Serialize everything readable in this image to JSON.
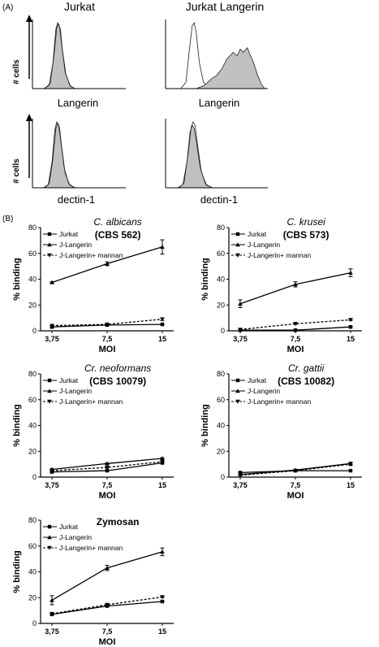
{
  "figure": {
    "panel_a_label": "(A)",
    "panel_b_label": "(B)"
  },
  "chart_data": [
    {
      "type": "area",
      "kind": "flow-histogram",
      "title": "Jurkat",
      "xlabel": "Langerin",
      "ylabel": "# cells",
      "series": [
        {
          "fill": "#c0c0c0",
          "profile": [
            [
              0,
              0
            ],
            [
              0.12,
              0
            ],
            [
              0.18,
              0.05
            ],
            [
              0.22,
              0.4
            ],
            [
              0.25,
              0.9
            ],
            [
              0.27,
              1.0
            ],
            [
              0.29,
              0.95
            ],
            [
              0.31,
              0.7
            ],
            [
              0.35,
              0.25
            ],
            [
              0.4,
              0.05
            ],
            [
              0.45,
              0
            ],
            [
              1,
              0
            ]
          ]
        },
        {
          "fill": "none",
          "profile": [
            [
              0,
              0
            ],
            [
              0.13,
              0
            ],
            [
              0.19,
              0.08
            ],
            [
              0.23,
              0.5
            ],
            [
              0.26,
              0.92
            ],
            [
              0.28,
              0.98
            ],
            [
              0.3,
              0.9
            ],
            [
              0.32,
              0.6
            ],
            [
              0.36,
              0.2
            ],
            [
              0.41,
              0.03
            ],
            [
              0.46,
              0
            ],
            [
              1,
              0
            ]
          ]
        }
      ]
    },
    {
      "type": "area",
      "kind": "flow-histogram",
      "title": "Jurkat Langerin",
      "xlabel": "Langerin",
      "ylabel": "",
      "series": [
        {
          "fill": "none",
          "profile": [
            [
              0,
              0
            ],
            [
              0.15,
              0
            ],
            [
              0.2,
              0.1
            ],
            [
              0.23,
              0.55
            ],
            [
              0.26,
              0.95
            ],
            [
              0.28,
              1.0
            ],
            [
              0.3,
              0.85
            ],
            [
              0.33,
              0.4
            ],
            [
              0.37,
              0.1
            ],
            [
              0.42,
              0
            ],
            [
              1,
              0
            ]
          ]
        },
        {
          "fill": "#c0c0c0",
          "profile": [
            [
              0,
              0
            ],
            [
              0.3,
              0
            ],
            [
              0.38,
              0.05
            ],
            [
              0.45,
              0.15
            ],
            [
              0.5,
              0.2
            ],
            [
              0.55,
              0.3
            ],
            [
              0.6,
              0.45
            ],
            [
              0.63,
              0.5
            ],
            [
              0.66,
              0.55
            ],
            [
              0.7,
              0.5
            ],
            [
              0.73,
              0.6
            ],
            [
              0.76,
              0.55
            ],
            [
              0.8,
              0.62
            ],
            [
              0.83,
              0.5
            ],
            [
              0.86,
              0.4
            ],
            [
              0.9,
              0.2
            ],
            [
              0.94,
              0.06
            ],
            [
              0.97,
              0
            ],
            [
              1,
              0
            ]
          ]
        }
      ]
    },
    {
      "type": "area",
      "kind": "flow-histogram",
      "title": "",
      "xlabel": "dectin-1",
      "ylabel": "# cells",
      "series": [
        {
          "fill": "#c0c0c0",
          "profile": [
            [
              0,
              0
            ],
            [
              0.12,
              0
            ],
            [
              0.17,
              0.05
            ],
            [
              0.21,
              0.4
            ],
            [
              0.24,
              0.88
            ],
            [
              0.26,
              1.0
            ],
            [
              0.28,
              0.96
            ],
            [
              0.3,
              0.75
            ],
            [
              0.34,
              0.3
            ],
            [
              0.39,
              0.06
            ],
            [
              0.45,
              0
            ],
            [
              1,
              0
            ]
          ]
        },
        {
          "fill": "none",
          "profile": [
            [
              0,
              0
            ],
            [
              0.13,
              0
            ],
            [
              0.18,
              0.06
            ],
            [
              0.22,
              0.45
            ],
            [
              0.25,
              0.9
            ],
            [
              0.27,
              0.97
            ],
            [
              0.29,
              0.92
            ],
            [
              0.31,
              0.65
            ],
            [
              0.35,
              0.22
            ],
            [
              0.4,
              0.04
            ],
            [
              0.46,
              0
            ],
            [
              1,
              0
            ]
          ]
        }
      ]
    },
    {
      "type": "area",
      "kind": "flow-histogram",
      "title": "",
      "xlabel": "dectin-1",
      "ylabel": "",
      "series": [
        {
          "fill": "#c0c0c0",
          "profile": [
            [
              0,
              0
            ],
            [
              0.12,
              0
            ],
            [
              0.17,
              0.05
            ],
            [
              0.21,
              0.4
            ],
            [
              0.24,
              0.85
            ],
            [
              0.26,
              0.95
            ],
            [
              0.28,
              0.9
            ],
            [
              0.3,
              0.72
            ],
            [
              0.34,
              0.3
            ],
            [
              0.39,
              0.06
            ],
            [
              0.45,
              0
            ],
            [
              1,
              0
            ]
          ]
        },
        {
          "fill": "none",
          "profile": [
            [
              0,
              0
            ],
            [
              0.13,
              0
            ],
            [
              0.18,
              0.07
            ],
            [
              0.22,
              0.5
            ],
            [
              0.25,
              0.92
            ],
            [
              0.27,
              1.0
            ],
            [
              0.29,
              0.94
            ],
            [
              0.31,
              0.68
            ],
            [
              0.35,
              0.24
            ],
            [
              0.4,
              0.04
            ],
            [
              0.46,
              0
            ],
            [
              1,
              0
            ]
          ]
        }
      ]
    },
    {
      "type": "line",
      "title_italic": "C. albicans",
      "title_bold": "(CBS 562)",
      "xlabel": "MOI",
      "ylabel": "% binding",
      "categories": [
        "3,75",
        "7,5",
        "15"
      ],
      "ylim": [
        0,
        80
      ],
      "yticks": [
        0,
        20,
        40,
        60,
        80
      ],
      "legend_position": "top-left",
      "series": [
        {
          "name": "Jurkat",
          "marker": "square",
          "dash": "solid",
          "values": [
            3,
            4.5,
            5
          ],
          "errors": [
            1,
            0.5,
            0.5
          ]
        },
        {
          "name": "J-Langerin",
          "marker": "triangle",
          "dash": "solid",
          "values": [
            37.5,
            52,
            65
          ],
          "errors": [
            0.5,
            1.5,
            5.5
          ]
        },
        {
          "name": "J-Langerin+ mannan",
          "marker": "triangle-down",
          "dash": "dashed",
          "values": [
            4,
            5,
            9
          ],
          "errors": [
            1,
            0.5,
            1
          ]
        }
      ]
    },
    {
      "type": "line",
      "title_italic": "C. krusei",
      "title_bold": "(CBS 573)",
      "xlabel": "MOI",
      "ylabel": "% binding",
      "categories": [
        "3,75",
        "7,5",
        "15"
      ],
      "ylim": [
        0,
        80
      ],
      "yticks": [
        0,
        20,
        40,
        60,
        80
      ],
      "legend_position": "top-left",
      "series": [
        {
          "name": "Jurkat",
          "marker": "square",
          "dash": "solid",
          "values": [
            0.5,
            0.5,
            3
          ],
          "errors": [
            0.5,
            0.3,
            0.5
          ]
        },
        {
          "name": "J-Langerin",
          "marker": "triangle",
          "dash": "solid",
          "values": [
            21,
            36,
            45
          ],
          "errors": [
            3,
            2,
            3
          ]
        },
        {
          "name": "J-Langerin+ mannan",
          "marker": "triangle-down",
          "dash": "dashed",
          "values": [
            1,
            5.5,
            8.5
          ],
          "errors": [
            0.3,
            0.5,
            0.5
          ]
        }
      ]
    },
    {
      "type": "line",
      "title_italic": "Cr. neoformans",
      "title_bold": "(CBS 10079)",
      "xlabel": "MOI",
      "ylabel": "% binding",
      "categories": [
        "3,75",
        "7,5",
        "15"
      ],
      "ylim": [
        0,
        80
      ],
      "yticks": [
        0,
        20,
        40,
        60,
        80
      ],
      "legend_position": "top-left",
      "series": [
        {
          "name": "Jurkat",
          "marker": "square",
          "dash": "solid",
          "values": [
            4,
            5,
            11
          ],
          "errors": [
            0.5,
            0.5,
            0.5
          ]
        },
        {
          "name": "J-Langerin",
          "marker": "triangle",
          "dash": "solid",
          "values": [
            6,
            10.5,
            14.5
          ],
          "errors": [
            0.5,
            0.5,
            0.5
          ]
        },
        {
          "name": "J-Langerin+ mannan",
          "marker": "triangle-down",
          "dash": "dashed",
          "values": [
            5,
            7.5,
            12
          ],
          "errors": [
            0.5,
            0.5,
            0.5
          ]
        }
      ]
    },
    {
      "type": "line",
      "title_italic": "Cr. gattii",
      "title_bold": "(CBS 10082)",
      "xlabel": "MOI",
      "ylabel": "% binding",
      "categories": [
        "3,75",
        "7,5",
        "15"
      ],
      "ylim": [
        0,
        80
      ],
      "yticks": [
        0,
        20,
        40,
        60,
        80
      ],
      "legend_position": "top-left",
      "series": [
        {
          "name": "Jurkat",
          "marker": "square",
          "dash": "solid",
          "values": [
            3.5,
            5,
            5
          ],
          "errors": [
            0.5,
            0.3,
            0.3
          ]
        },
        {
          "name": "J-Langerin",
          "marker": "triangle",
          "dash": "solid",
          "values": [
            2,
            5.5,
            10.5
          ],
          "errors": [
            0.3,
            0.5,
            1
          ]
        },
        {
          "name": "J-Langerin+ mannan",
          "marker": "triangle-down",
          "dash": "dashed",
          "values": [
            1.5,
            5,
            10
          ],
          "errors": [
            0.3,
            0.5,
            1
          ]
        }
      ]
    },
    {
      "type": "line",
      "title_italic": "",
      "title_bold": "Zymosan",
      "xlabel": "MOI",
      "ylabel": "% binding",
      "categories": [
        "3,75",
        "7,5",
        "15"
      ],
      "ylim": [
        0,
        80
      ],
      "yticks": [
        0,
        20,
        40,
        60,
        80
      ],
      "legend_position": "top-left",
      "series": [
        {
          "name": "Jurkat",
          "marker": "square",
          "dash": "solid",
          "values": [
            7,
            13.5,
            17
          ],
          "errors": [
            0.5,
            0.5,
            0.5
          ]
        },
        {
          "name": "J-Langerin",
          "marker": "triangle",
          "dash": "solid",
          "values": [
            18,
            43,
            55.5
          ],
          "errors": [
            3.5,
            2,
            3
          ]
        },
        {
          "name": "J-Langerin+ mannan",
          "marker": "triangle-down",
          "dash": "dashed",
          "values": [
            7.5,
            14.5,
            20.5
          ],
          "errors": [
            0.5,
            0.5,
            0.5
          ]
        }
      ]
    }
  ]
}
